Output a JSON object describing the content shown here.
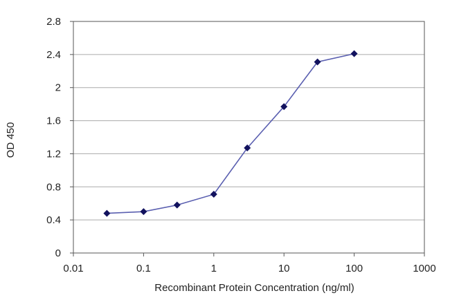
{
  "chart_data": {
    "type": "line",
    "title": "",
    "xlabel": "Recombinant Protein Concentration (ng/ml)",
    "ylabel": "OD 450",
    "xscale": "log",
    "xlim": [
      0.01,
      1000
    ],
    "ylim": [
      0,
      2.8
    ],
    "grid": "horizontal",
    "legend": "none",
    "x_ticks": [
      "0.01",
      "0.1",
      "1",
      "10",
      "100",
      "1000"
    ],
    "y_ticks": [
      "0",
      "0.4",
      "0.8",
      "1.2",
      "1.6",
      "2",
      "2.4",
      "2.8"
    ],
    "series": [
      {
        "x": [
          0.03,
          0.1,
          0.3,
          1,
          3,
          10,
          30,
          100
        ],
        "y": [
          0.48,
          0.5,
          0.58,
          0.71,
          1.27,
          1.77,
          2.31,
          2.41
        ]
      }
    ],
    "colors": {
      "line": "#5a5fb0",
      "marker": "#12125e",
      "grid": "#aaaaaa",
      "axis": "#555555"
    }
  }
}
